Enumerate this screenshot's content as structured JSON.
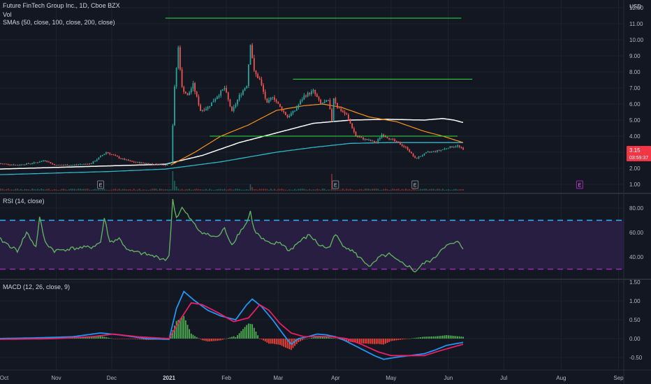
{
  "header": {
    "main_legend": "Future FinTech Group Inc., 1D, Cboe BZX",
    "vol_legend": "Vol",
    "sma_legend": "SMAs (50, close, 100, close, 200, close)",
    "rsi_legend": "RSI (14, close)",
    "macd_legend": "MACD (12, 26, close, 9)",
    "currency": "USD"
  },
  "price_tag": {
    "price": "3.15",
    "countdown": "03:59:37",
    "color": "#f23645"
  },
  "colors": {
    "up": "#26a69a",
    "down": "#ef5350",
    "sma50": "#f7931a",
    "sma100": "#ffffff",
    "sma200": "#2fb8c9",
    "hline": "#2fe043",
    "rsi": "#5faf5f",
    "rsi_band": "#2a1f45",
    "rsi_upper": "#29b6f6",
    "rsi_lower": "#9c27b0",
    "macd": "#2196f3",
    "signal": "#e91e63",
    "hist_up": "#4caf50",
    "hist_down": "#f44336",
    "background": "#131722"
  },
  "chart_data": [
    {
      "type": "candlestick",
      "title": "Future FinTech Group Inc., 1D, Cboe BZX",
      "y_ticks": [
        "12.00",
        "11.00",
        "10.00",
        "9.00",
        "8.00",
        "7.00",
        "6.00",
        "5.00",
        "4.00",
        "3.00",
        "2.00",
        "1.00"
      ],
      "ylim": [
        0.7,
        12.0
      ],
      "x_ticks": [
        {
          "label": "Oct",
          "day": 0
        },
        {
          "label": "Nov",
          "day": 31
        },
        {
          "label": "Dec",
          "day": 61
        },
        {
          "label": "2021",
          "day": 92,
          "bold": true
        },
        {
          "label": "Feb",
          "day": 123
        },
        {
          "label": "Mar",
          "day": 151
        },
        {
          "label": "Apr",
          "day": 182
        },
        {
          "label": "May",
          "day": 212
        },
        {
          "label": "Jun",
          "day": 243
        },
        {
          "label": "Jul",
          "day": 273
        },
        {
          "label": "Aug",
          "day": 304
        },
        {
          "label": "Sep",
          "day": 335
        }
      ],
      "close_anchors": [
        [
          0,
          2.3
        ],
        [
          10,
          2.2
        ],
        [
          20,
          2.35
        ],
        [
          25,
          2.5
        ],
        [
          30,
          2.2
        ],
        [
          40,
          2.2
        ],
        [
          50,
          2.3
        ],
        [
          58,
          3.0
        ],
        [
          62,
          2.8
        ],
        [
          66,
          2.6
        ],
        [
          72,
          2.4
        ],
        [
          80,
          2.3
        ],
        [
          90,
          2.2
        ],
        [
          93,
          2.4
        ],
        [
          95,
          7.0
        ],
        [
          97,
          9.5
        ],
        [
          99,
          7.0
        ],
        [
          102,
          6.5
        ],
        [
          105,
          7.2
        ],
        [
          109,
          5.6
        ],
        [
          113,
          5.8
        ],
        [
          118,
          6.5
        ],
        [
          122,
          7.0
        ],
        [
          126,
          5.5
        ],
        [
          130,
          6.5
        ],
        [
          134,
          7.2
        ],
        [
          136,
          9.8
        ],
        [
          138,
          8.0
        ],
        [
          141,
          7.5
        ],
        [
          145,
          6.0
        ],
        [
          148,
          6.5
        ],
        [
          152,
          5.8
        ],
        [
          156,
          5.2
        ],
        [
          160,
          5.6
        ],
        [
          165,
          6.5
        ],
        [
          170,
          6.8
        ],
        [
          174,
          6.0
        ],
        [
          178,
          6.2
        ],
        [
          180,
          5.0
        ],
        [
          181,
          6.4
        ],
        [
          183,
          5.8
        ],
        [
          188,
          5.3
        ],
        [
          193,
          4.0
        ],
        [
          198,
          3.8
        ],
        [
          204,
          3.6
        ],
        [
          207,
          4.1
        ],
        [
          212,
          3.8
        ],
        [
          217,
          3.5
        ],
        [
          221,
          3.2
        ],
        [
          225,
          2.6
        ],
        [
          232,
          3.0
        ],
        [
          238,
          3.1
        ],
        [
          243,
          3.3
        ],
        [
          248,
          3.4
        ],
        [
          251,
          3.15
        ]
      ],
      "horizontal_lines": [
        {
          "price": 11.35,
          "from_day": 90,
          "to_day": 250
        },
        {
          "price": 7.55,
          "from_day": 159,
          "to_day": 256
        },
        {
          "price": 4.0,
          "from_day": 114,
          "to_day": 248
        }
      ],
      "sma50_anchors": [
        [
          93,
          2.2
        ],
        [
          106,
          3.0
        ],
        [
          120,
          4.0
        ],
        [
          135,
          4.7
        ],
        [
          150,
          5.6
        ],
        [
          165,
          5.9
        ],
        [
          175,
          6.0
        ],
        [
          185,
          5.8
        ],
        [
          200,
          5.2
        ],
        [
          215,
          4.9
        ],
        [
          230,
          4.3
        ],
        [
          240,
          4.0
        ],
        [
          251,
          3.6
        ]
      ],
      "sma100_anchors": [
        [
          0,
          1.95
        ],
        [
          30,
          2.05
        ],
        [
          60,
          2.15
        ],
        [
          90,
          2.25
        ],
        [
          110,
          2.8
        ],
        [
          130,
          3.6
        ],
        [
          150,
          4.2
        ],
        [
          170,
          4.8
        ],
        [
          190,
          5.0
        ],
        [
          210,
          5.05
        ],
        [
          230,
          5.0
        ],
        [
          240,
          5.1
        ],
        [
          246,
          5.0
        ],
        [
          251,
          4.85
        ]
      ],
      "sma200_anchors": [
        [
          0,
          1.6
        ],
        [
          30,
          1.7
        ],
        [
          60,
          1.8
        ],
        [
          90,
          1.95
        ],
        [
          120,
          2.4
        ],
        [
          150,
          3.0
        ],
        [
          170,
          3.3
        ],
        [
          190,
          3.55
        ],
        [
          210,
          3.6
        ],
        [
          230,
          3.6
        ],
        [
          251,
          3.6
        ]
      ],
      "earnings_markers": [
        {
          "label": "E",
          "day": 55,
          "future": false
        },
        {
          "label": "E",
          "day": 182,
          "future": false
        },
        {
          "label": "E",
          "day": 225,
          "future": false
        },
        {
          "label": "E",
          "day": 314,
          "future": true
        }
      ]
    },
    {
      "type": "line",
      "title": "RSI (14, close)",
      "y_ticks": [
        "80.00",
        "60.00",
        "40.00"
      ],
      "ylim": [
        25,
        92
      ],
      "overbought": 70,
      "oversold": 30,
      "rsi_anchors": [
        [
          0,
          55
        ],
        [
          5,
          50
        ],
        [
          10,
          45
        ],
        [
          15,
          60
        ],
        [
          20,
          48
        ],
        [
          22,
          72
        ],
        [
          25,
          52
        ],
        [
          30,
          45
        ],
        [
          40,
          47
        ],
        [
          50,
          48
        ],
        [
          55,
          52
        ],
        [
          57,
          72
        ],
        [
          60,
          52
        ],
        [
          65,
          55
        ],
        [
          70,
          45
        ],
        [
          80,
          42
        ],
        [
          90,
          38
        ],
        [
          92,
          40
        ],
        [
          94,
          87
        ],
        [
          96,
          72
        ],
        [
          99,
          80
        ],
        [
          103,
          72
        ],
        [
          108,
          62
        ],
        [
          113,
          58
        ],
        [
          118,
          56
        ],
        [
          122,
          63
        ],
        [
          126,
          50
        ],
        [
          130,
          60
        ],
        [
          134,
          68
        ],
        [
          136,
          77
        ],
        [
          138,
          62
        ],
        [
          142,
          55
        ],
        [
          147,
          50
        ],
        [
          152,
          52
        ],
        [
          157,
          45
        ],
        [
          162,
          52
        ],
        [
          168,
          58
        ],
        [
          173,
          50
        ],
        [
          178,
          47
        ],
        [
          182,
          58
        ],
        [
          186,
          50
        ],
        [
          191,
          45
        ],
        [
          196,
          38
        ],
        [
          201,
          32
        ],
        [
          206,
          40
        ],
        [
          211,
          42
        ],
        [
          216,
          36
        ],
        [
          221,
          33
        ],
        [
          225,
          28
        ],
        [
          230,
          35
        ],
        [
          235,
          38
        ],
        [
          240,
          48
        ],
        [
          244,
          50
        ],
        [
          248,
          52
        ],
        [
          251,
          47
        ]
      ]
    },
    {
      "type": "line",
      "title": "MACD (12, 26, close, 9)",
      "y_ticks": [
        "1.50",
        "1.00",
        "0.50",
        "0.00",
        "-0.50"
      ],
      "ylim": [
        -0.75,
        1.55
      ],
      "macd_anchors": [
        [
          0,
          0.0
        ],
        [
          20,
          0.02
        ],
        [
          40,
          0.05
        ],
        [
          55,
          0.15
        ],
        [
          65,
          0.1
        ],
        [
          80,
          0.0
        ],
        [
          92,
          -0.02
        ],
        [
          96,
          0.8
        ],
        [
          100,
          1.25
        ],
        [
          106,
          1.0
        ],
        [
          113,
          0.75
        ],
        [
          120,
          0.6
        ],
        [
          128,
          0.5
        ],
        [
          134,
          0.9
        ],
        [
          137,
          1.05
        ],
        [
          142,
          0.85
        ],
        [
          148,
          0.5
        ],
        [
          154,
          0.1
        ],
        [
          158,
          -0.15
        ],
        [
          162,
          0.0
        ],
        [
          167,
          0.05
        ],
        [
          172,
          0.12
        ],
        [
          177,
          0.1
        ],
        [
          182,
          0.05
        ],
        [
          187,
          -0.05
        ],
        [
          195,
          -0.25
        ],
        [
          203,
          -0.45
        ],
        [
          208,
          -0.55
        ],
        [
          214,
          -0.5
        ],
        [
          222,
          -0.45
        ],
        [
          230,
          -0.4
        ],
        [
          236,
          -0.3
        ],
        [
          242,
          -0.18
        ],
        [
          251,
          -0.1
        ]
      ],
      "signal_anchors": [
        [
          0,
          -0.02
        ],
        [
          30,
          0.0
        ],
        [
          50,
          0.05
        ],
        [
          62,
          0.12
        ],
        [
          75,
          0.05
        ],
        [
          92,
          0.0
        ],
        [
          98,
          0.5
        ],
        [
          104,
          0.95
        ],
        [
          110,
          0.9
        ],
        [
          118,
          0.7
        ],
        [
          127,
          0.45
        ],
        [
          135,
          0.55
        ],
        [
          141,
          0.9
        ],
        [
          146,
          0.75
        ],
        [
          152,
          0.4
        ],
        [
          158,
          0.15
        ],
        [
          165,
          0.05
        ],
        [
          172,
          0.06
        ],
        [
          180,
          0.05
        ],
        [
          188,
          0.0
        ],
        [
          196,
          -0.15
        ],
        [
          205,
          -0.35
        ],
        [
          212,
          -0.45
        ],
        [
          220,
          -0.45
        ],
        [
          230,
          -0.45
        ],
        [
          240,
          -0.3
        ],
        [
          251,
          -0.15
        ]
      ]
    }
  ]
}
